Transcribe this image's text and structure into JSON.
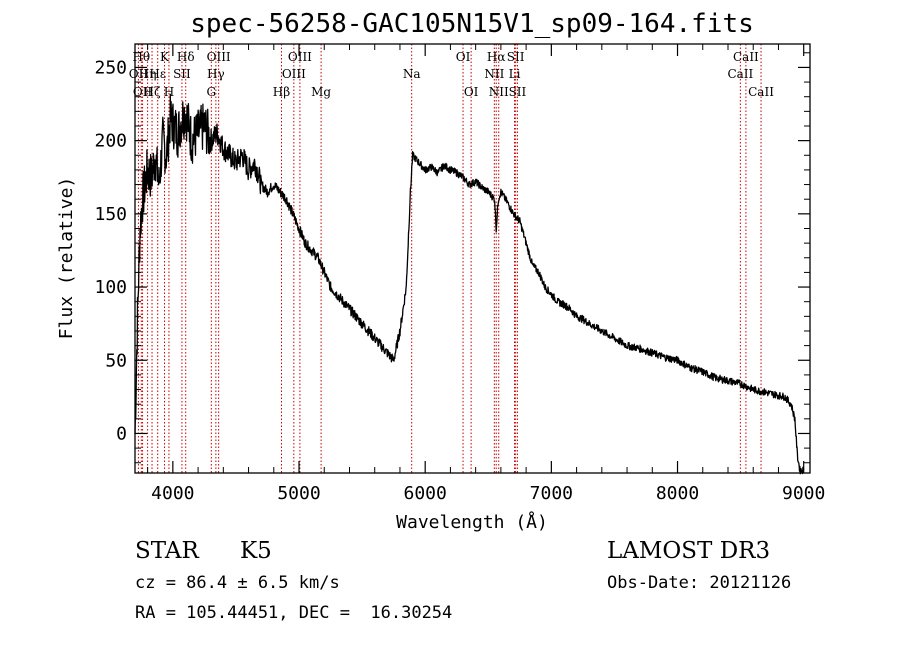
{
  "chart_data": {
    "type": "line",
    "title": "spec-56258-GAC105N15V1_sp09-164.fits",
    "xlabel": "Wavelength (Å)",
    "ylabel": "Flux (relative)",
    "xlim": [
      3700,
      9050
    ],
    "ylim": [
      -27,
      266
    ],
    "xticks": [
      4000,
      5000,
      6000,
      7000,
      8000,
      9000
    ],
    "yticks": [
      0,
      50,
      100,
      150,
      200,
      250
    ],
    "series": [
      {
        "name": "spectrum",
        "x": [
          3700,
          3720,
          3740,
          3760,
          3780,
          3800,
          3830,
          3860,
          3890,
          3920,
          3950,
          3980,
          4010,
          4040,
          4070,
          4100,
          4150,
          4200,
          4250,
          4300,
          4350,
          4400,
          4450,
          4500,
          4550,
          4600,
          4650,
          4700,
          4750,
          4800,
          4850,
          4900,
          4950,
          5000,
          5050,
          5100,
          5150,
          5200,
          5250,
          5300,
          5350,
          5400,
          5450,
          5500,
          5550,
          5600,
          5650,
          5700,
          5750,
          5800,
          5850,
          5880,
          5900,
          5950,
          6000,
          6050,
          6100,
          6150,
          6200,
          6250,
          6300,
          6350,
          6400,
          6450,
          6500,
          6550,
          6563,
          6580,
          6600,
          6650,
          6700,
          6750,
          6800,
          6850,
          6900,
          6950,
          7000,
          7050,
          7100,
          7150,
          7200,
          7250,
          7300,
          7400,
          7500,
          7600,
          7700,
          7800,
          7900,
          8000,
          8100,
          8200,
          8300,
          8400,
          8500,
          8600,
          8700,
          8800,
          8850,
          8900,
          8930,
          8950,
          8970,
          9000
        ],
        "y": [
          0,
          80,
          140,
          160,
          170,
          180,
          175,
          190,
          170,
          200,
          190,
          215,
          210,
          205,
          215,
          220,
          200,
          205,
          210,
          200,
          205,
          195,
          190,
          185,
          190,
          180,
          185,
          170,
          165,
          170,
          165,
          160,
          150,
          140,
          130,
          125,
          120,
          110,
          100,
          95,
          90,
          85,
          80,
          75,
          70,
          65,
          60,
          55,
          50,
          70,
          100,
          160,
          190,
          185,
          180,
          182,
          178,
          183,
          180,
          178,
          175,
          170,
          172,
          168,
          165,
          160,
          140,
          160,
          165,
          158,
          150,
          145,
          130,
          115,
          110,
          100,
          95,
          90,
          88,
          85,
          80,
          78,
          75,
          70,
          65,
          60,
          58,
          55,
          52,
          50,
          45,
          42,
          38,
          36,
          34,
          30,
          28,
          26,
          25,
          20,
          10,
          -15,
          -25,
          -25
        ]
      }
    ],
    "lines": [
      {
        "name": "OII",
        "wave": 3727,
        "row": 1
      },
      {
        "name": "Hθ",
        "wave": 3750,
        "row": 0
      },
      {
        "name": "OII",
        "wave": 3760,
        "row": 2
      },
      {
        "name": "Hη",
        "wave": 3800,
        "row": 1
      },
      {
        "name": "Hζ",
        "wave": 3835,
        "row": 2
      },
      {
        "name": "Hε",
        "wave": 3880,
        "row": 1
      },
      {
        "name": "K",
        "wave": 3934,
        "row": 0
      },
      {
        "name": "H",
        "wave": 3969,
        "row": 2
      },
      {
        "name": "SII",
        "wave": 4072,
        "row": 1
      },
      {
        "name": "Hδ",
        "wave": 4102,
        "row": 0
      },
      {
        "name": "G",
        "wave": 4305,
        "row": 2
      },
      {
        "name": "Hγ",
        "wave": 4341,
        "row": 1
      },
      {
        "name": "OIII",
        "wave": 4363,
        "row": 0
      },
      {
        "name": "Hβ",
        "wave": 4861,
        "row": 2
      },
      {
        "name": "OIII",
        "wave": 4959,
        "row": 1
      },
      {
        "name": "OIII",
        "wave": 5007,
        "row": 0
      },
      {
        "name": "Mg",
        "wave": 5175,
        "row": 2
      },
      {
        "name": "Na",
        "wave": 5893,
        "row": 1
      },
      {
        "name": "OI",
        "wave": 6300,
        "row": 0
      },
      {
        "name": "OI",
        "wave": 6364,
        "row": 2
      },
      {
        "name": "NII",
        "wave": 6548,
        "row": 1
      },
      {
        "name": "Hα",
        "wave": 6563,
        "row": 0
      },
      {
        "name": "NII",
        "wave": 6583,
        "row": 2
      },
      {
        "name": "Li",
        "wave": 6708,
        "row": 1
      },
      {
        "name": "SII",
        "wave": 6717,
        "row": 0
      },
      {
        "name": "SII",
        "wave": 6731,
        "row": 2
      },
      {
        "name": "CaII",
        "wave": 8498,
        "row": 1
      },
      {
        "name": "CaII",
        "wave": 8542,
        "row": 0
      },
      {
        "name": "CaII",
        "wave": 8662,
        "row": 2
      }
    ]
  },
  "info": {
    "object_class": "STAR",
    "subclass": "K5",
    "survey": "LAMOST DR3",
    "redshift_line": "cz = 86.4 ± 6.5 km/s",
    "obs_date_line": "Obs-Date: 20121126",
    "coords_line": "RA = 105.44451, DEC =  16.30254"
  },
  "colors": {
    "axis": "#000000",
    "spectrum": "#000000",
    "lines": "#cc0000"
  }
}
